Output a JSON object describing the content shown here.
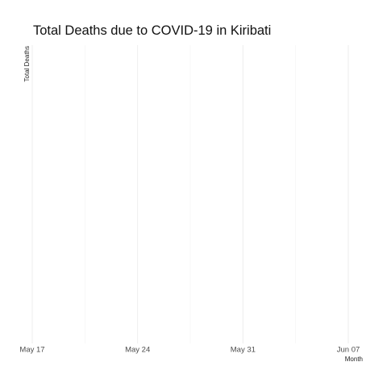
{
  "chart_data": {
    "type": "line",
    "title": "Total Deaths due to COVID-19 in Kiribati",
    "xlabel": "Month",
    "ylabel": "Total Deaths",
    "x_ticks": [
      "2021-05-17",
      "2021-05-24",
      "2021-05-31",
      "2021-06-07"
    ],
    "x_tick_labels": [
      "May 17",
      "May 24",
      "May 31",
      "Jun 07"
    ],
    "xlim": [
      "2021-05-17",
      "2021-06-07"
    ],
    "series": [],
    "grid": true,
    "legend": "none",
    "colors": {
      "grid_major": "#ebebeb",
      "grid_minor": "#f4f4f4",
      "title": "#111111",
      "tick_text": "#4d4d4d"
    }
  }
}
